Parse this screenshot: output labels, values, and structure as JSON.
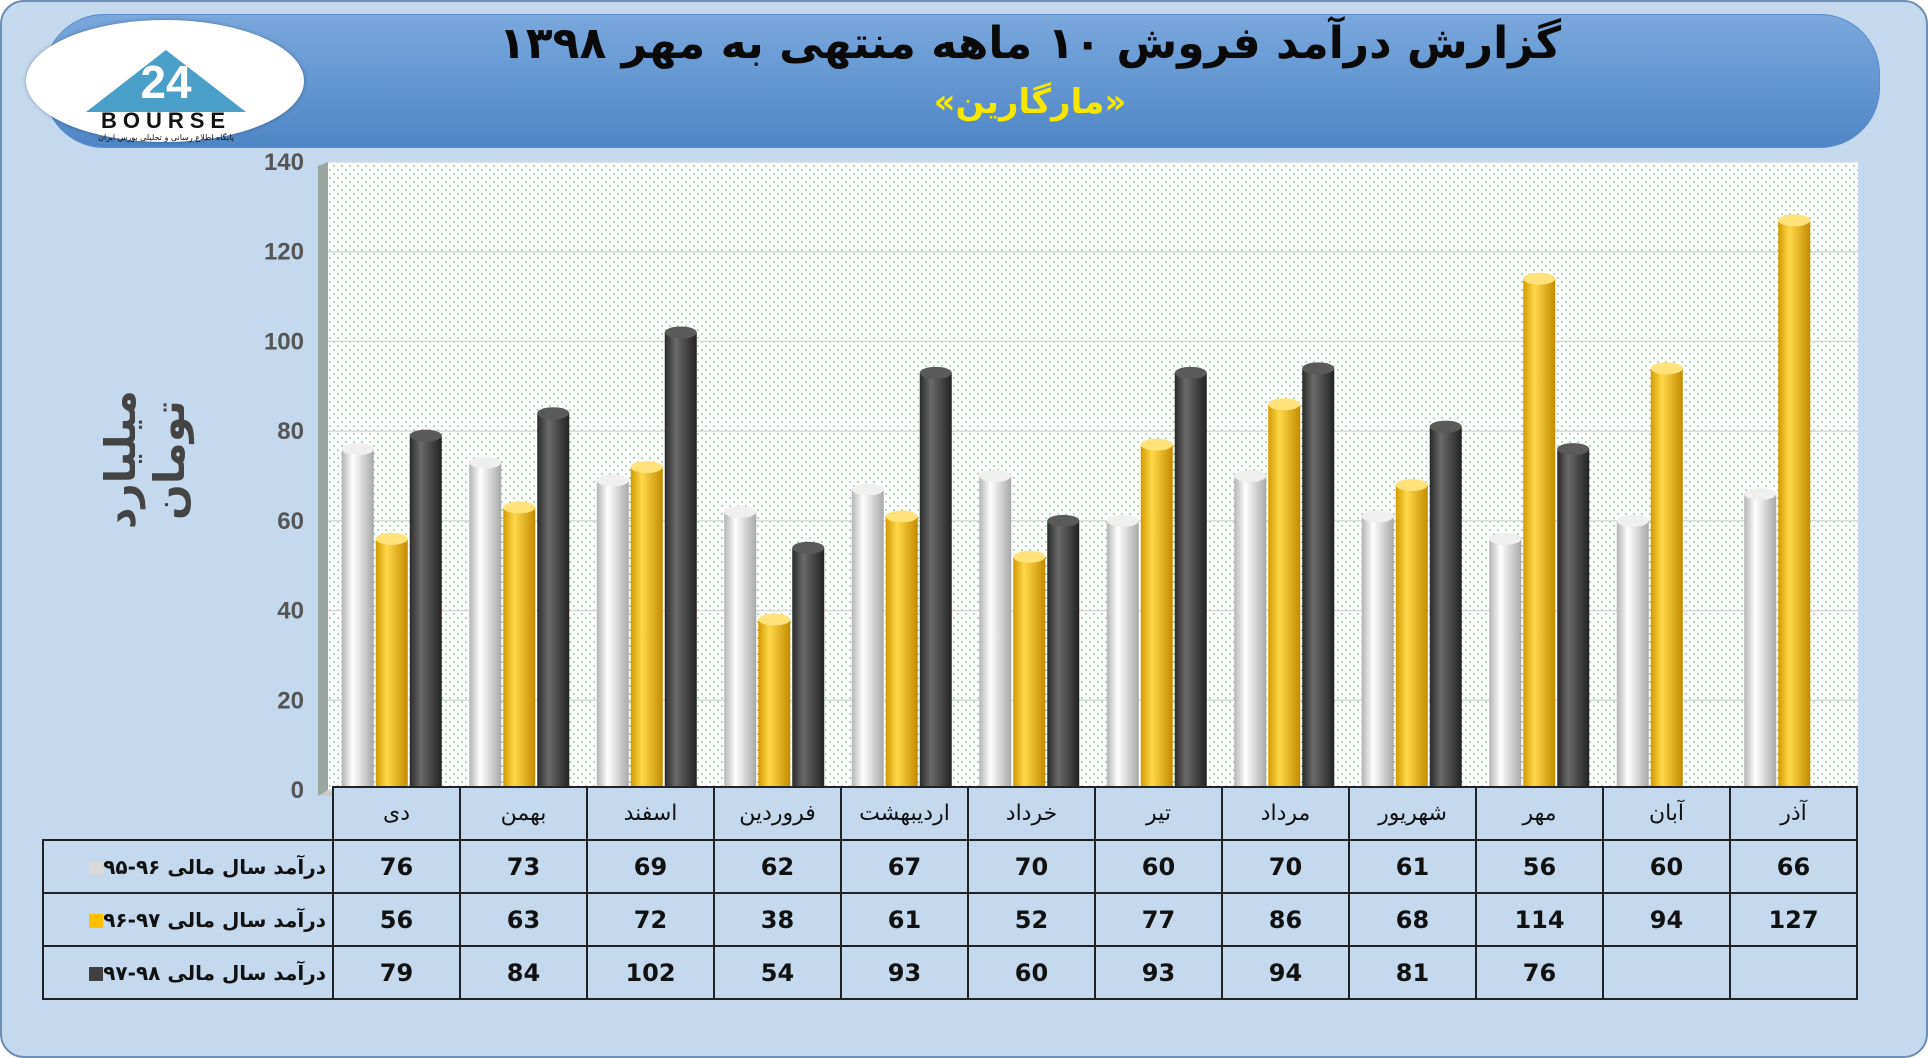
{
  "title": "گزارش درآمد فروش ۱۰ ماهه منتهی به مهر ۱۳۹۸",
  "subtitle": "«مارگارین»",
  "logo": {
    "text": "BOURSE",
    "tagline": "پایگاه اطلاع رسانی و تحلیلی بورس ایران",
    "number": "24"
  },
  "colors": {
    "series1": "#d9d9d9",
    "series2": "#ffc000",
    "series3": "#404040",
    "header": "#5b8fd1",
    "frame": "#c5d9ee",
    "subtitle": "#f7e600"
  },
  "chart_data": {
    "type": "bar",
    "ylabel": "میلیارد تومان",
    "ylim": [
      0,
      140
    ],
    "yticks": [
      "0",
      "20",
      "40",
      "60",
      "80",
      "100",
      "120",
      "140"
    ],
    "grid": true,
    "categories": [
      "دی",
      "بهمن",
      "اسفند",
      "فروردین",
      "اردیبهشت",
      "خرداد",
      "تیر",
      "مرداد",
      "شهریور",
      "مهر",
      "آبان",
      "آذر"
    ],
    "series": [
      {
        "name": "درآمد سال مالی ۹۶-۹۵",
        "values": [
          76,
          73,
          69,
          62,
          67,
          70,
          60,
          70,
          61,
          56,
          60,
          66
        ]
      },
      {
        "name": "درآمد سال مالی ۹۷-۹۶",
        "values": [
          56,
          63,
          72,
          38,
          61,
          52,
          77,
          86,
          68,
          114,
          94,
          127
        ]
      },
      {
        "name": "درآمد سال مالی ۹۸-۹۷",
        "values": [
          79,
          84,
          102,
          54,
          93,
          60,
          93,
          94,
          81,
          76,
          null,
          null
        ]
      }
    ]
  }
}
